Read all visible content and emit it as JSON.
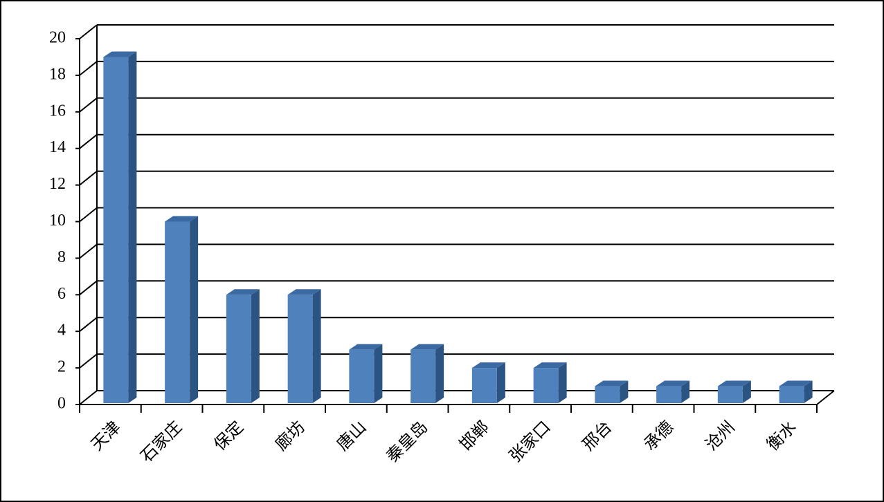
{
  "chart_data": {
    "type": "bar",
    "categories": [
      "天津",
      "石家庄",
      "保定",
      "廊坊",
      "唐山",
      "秦皇岛",
      "邯郸",
      "张家口",
      "邢台",
      "承德",
      "沧州",
      "衡水"
    ],
    "values": [
      19,
      10,
      6,
      6,
      3,
      3,
      2,
      2,
      1,
      1,
      1,
      1
    ],
    "color": "#4f81bd",
    "ylim": [
      0,
      20
    ],
    "yticks": [
      0,
      2,
      4,
      6,
      8,
      10,
      12,
      14,
      16,
      18,
      20
    ],
    "grid": true
  }
}
